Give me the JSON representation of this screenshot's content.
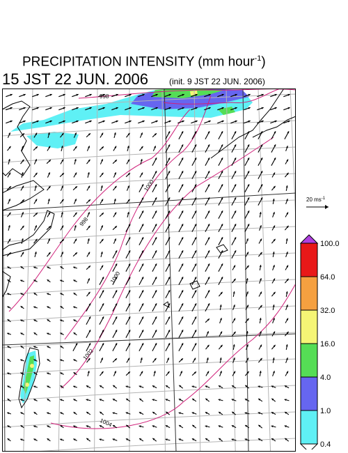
{
  "header": {
    "title_prefix": "PRECIPITATION INTENSITY (mm hour",
    "title_exp": "-1",
    "title_suffix": ")",
    "datetime": "15 JST 22 JUN. 2006",
    "init": "(init. 9 JST 22 JUN. 2006)"
  },
  "reference_vector": {
    "label_prefix": "20 ms",
    "label_exp": "-1"
  },
  "legend": {
    "levels": [
      "0.4",
      "1.0",
      "4.0",
      "16.0",
      "32.0",
      "64.0",
      "100.0"
    ],
    "colors": [
      "#5ff0f5",
      "#6666f0",
      "#55dd55",
      "#f5f575",
      "#f5a040",
      "#e81818",
      "#b040e0"
    ]
  },
  "contours": [
    {
      "label": "998"
    },
    {
      "label": "1000"
    },
    {
      "label": "998"
    },
    {
      "label": "1000"
    },
    {
      "label": "1002"
    },
    {
      "label": "1004"
    }
  ],
  "colors": {
    "contour": "#d0207a",
    "grid": "#b4b4b4",
    "coast": "#000000"
  }
}
